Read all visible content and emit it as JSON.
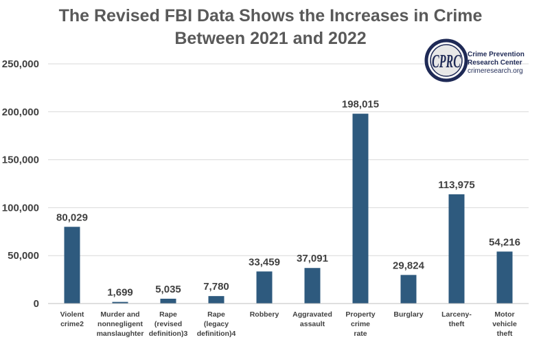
{
  "chart_data": {
    "type": "bar",
    "title": [
      "The Revised FBI Data Shows the Increases in Crime",
      "Between 2021 and 2022"
    ],
    "categories": [
      [
        "Violent",
        "crime2"
      ],
      [
        "Murder and",
        "nonnegligent",
        "manslaughter"
      ],
      [
        "Rape",
        "(revised",
        "definition)3"
      ],
      [
        "Rape",
        "(legacy",
        "definition)4"
      ],
      [
        "Robbery"
      ],
      [
        "Aggravated",
        "assault"
      ],
      [
        "Property",
        "crime",
        "rate"
      ],
      [
        "Burglary"
      ],
      [
        "Larceny-",
        "theft"
      ],
      [
        "Motor",
        "vehicle",
        "theft"
      ]
    ],
    "values": [
      80029,
      1699,
      5035,
      7780,
      33459,
      37091,
      198015,
      29824,
      113975,
      54216
    ],
    "value_labels": [
      "80,029",
      "1,699",
      "5,035",
      "7,780",
      "33,459",
      "37,091",
      "198,015",
      "29,824",
      "113,975",
      "54,216"
    ],
    "yticks": [
      0,
      50000,
      100000,
      150000,
      200000,
      250000
    ],
    "ytick_labels": [
      "0",
      "50,000",
      "100,000",
      "150,000",
      "200,000",
      "250,000"
    ],
    "ylim": [
      0,
      250000
    ],
    "xlabel": "",
    "ylabel": "",
    "grid": true,
    "bar_color": "#2e5a7e",
    "grid_color": "#d9d9d9"
  },
  "logo": {
    "initials": "CPRC",
    "line1": "Crime Prevention",
    "line2": "Research Center",
    "line3": "crimeresearch.org",
    "color": "#1f2a56"
  }
}
